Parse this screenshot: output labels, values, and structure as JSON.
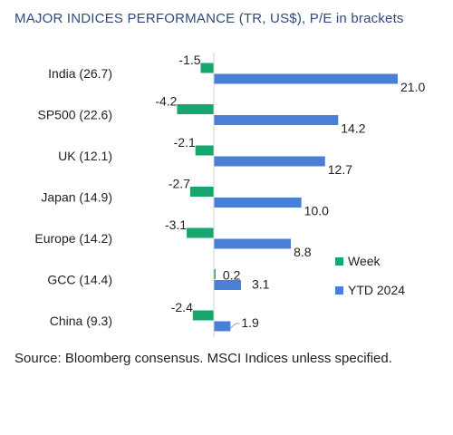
{
  "page": {
    "title": "MAJOR INDICES PERFORMANCE (TR, US$), P/E in brackets",
    "source": "Source: Bloomberg consensus. MSCI Indices unless specified."
  },
  "chart_data": {
    "type": "bar",
    "orientation": "horizontal",
    "title": "MAJOR INDICES PERFORMANCE (TR, US$), P/E in brackets",
    "categories": [
      "India (26.7)",
      "SP500 (22.6)",
      "UK (12.1)",
      "Japan (14.9)",
      "Europe (14.2)",
      "GCC (14.4)",
      "China (9.3)"
    ],
    "series": [
      {
        "name": "Week",
        "color": "#16a66e",
        "values": [
          -1.5,
          -4.2,
          -2.1,
          -2.7,
          -3.1,
          0.2,
          -2.4
        ],
        "labels": [
          "-1.5",
          "-4.2",
          "-2.1",
          "-2.7",
          "-3.1",
          "0.2",
          "-2.4"
        ]
      },
      {
        "name": "YTD 2024",
        "color": "#4a7fd6",
        "values": [
          21.0,
          14.2,
          12.7,
          10.0,
          8.8,
          3.1,
          1.9
        ],
        "labels": [
          "21.0",
          "14.2",
          "12.7",
          "10.0",
          "8.8",
          "3.1",
          "1.9"
        ]
      }
    ],
    "legend_position": "right",
    "grid": false,
    "xlim": [
      -5.5,
      22
    ]
  }
}
